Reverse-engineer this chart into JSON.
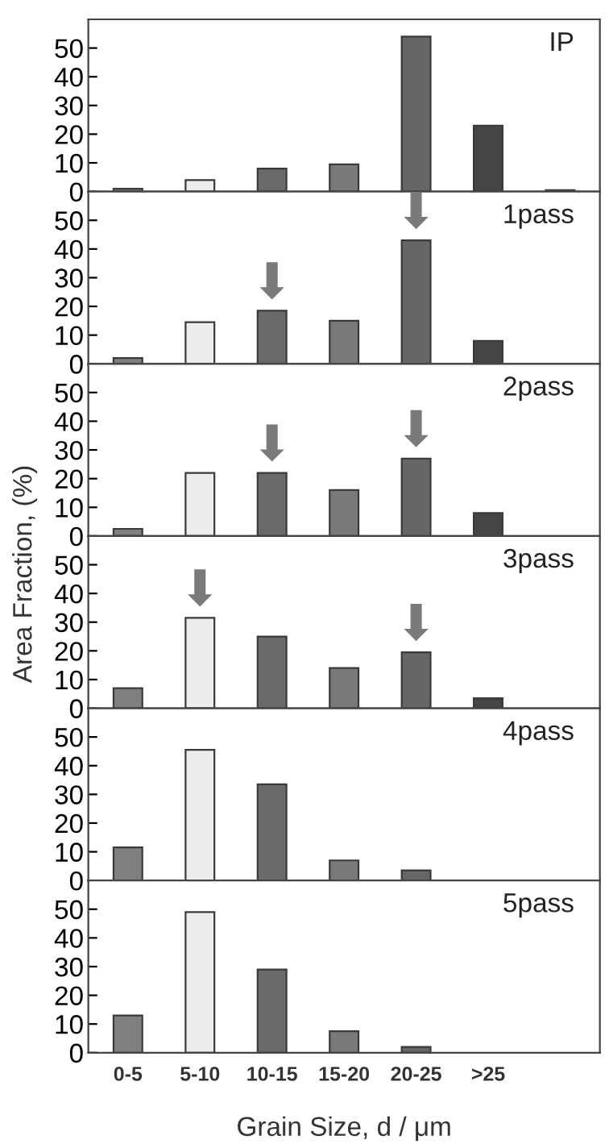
{
  "chart_data": [
    {
      "type": "bar",
      "title": "IP",
      "categories": [
        "0-5",
        "5-10",
        "10-15",
        "15-20",
        "20-25",
        ">25",
        null
      ],
      "values": [
        1,
        4,
        8,
        9.5,
        54,
        23,
        0.5
      ],
      "colors": [
        "#808080",
        "#ececec",
        "#6a6a6a",
        "#7a7a7a",
        "#666666",
        "#454545",
        "#555555"
      ],
      "ylim": [
        0,
        60
      ],
      "yticks": [
        0,
        10,
        20,
        30,
        40,
        50
      ],
      "tick_labels": "y",
      "grid": false,
      "legend": false
    },
    {
      "type": "bar",
      "title": "1pass",
      "categories": [
        "0-5",
        "5-10",
        "10-15",
        "15-20",
        "20-25",
        ">25",
        null
      ],
      "values": [
        2,
        14.5,
        18.5,
        15,
        43,
        8,
        null
      ],
      "colors": [
        "#808080",
        "#ececec",
        "#6a6a6a",
        "#7a7a7a",
        "#666666",
        "#454545",
        "#555555"
      ],
      "ylim": [
        0,
        60
      ],
      "yticks": [
        0,
        10,
        20,
        30,
        40,
        50
      ],
      "tick_labels": "y",
      "grid": false,
      "legend": false,
      "annotations": [
        {
          "text": "⬇",
          "x": "10-15",
          "y": 18.5
        },
        {
          "text": "⬇",
          "x": "20-25",
          "y": 43
        }
      ]
    },
    {
      "type": "bar",
      "title": "2pass",
      "categories": [
        "0-5",
        "5-10",
        "10-15",
        "15-20",
        "20-25",
        ">25",
        null
      ],
      "values": [
        2.5,
        22,
        22,
        16,
        27,
        8,
        null
      ],
      "colors": [
        "#808080",
        "#ececec",
        "#6a6a6a",
        "#7a7a7a",
        "#666666",
        "#454545",
        "#555555"
      ],
      "ylim": [
        0,
        60
      ],
      "yticks": [
        0,
        10,
        20,
        30,
        40,
        50
      ],
      "tick_labels": "y",
      "grid": false,
      "legend": false,
      "annotations": [
        {
          "text": "⬇",
          "x": "10-15",
          "y": 22
        },
        {
          "text": "⬇",
          "x": "20-25",
          "y": 27
        }
      ]
    },
    {
      "type": "bar",
      "title": "3pass",
      "ylabel": "Area Fraction, (%)",
      "categories": [
        "0-5",
        "5-10",
        "10-15",
        "15-20",
        "20-25",
        ">25",
        null
      ],
      "values": [
        7,
        31.5,
        25,
        14,
        19.5,
        3.5,
        null
      ],
      "colors": [
        "#808080",
        "#ececec",
        "#6a6a6a",
        "#7a7a7a",
        "#666666",
        "#454545",
        "#555555"
      ],
      "ylim": [
        0,
        60
      ],
      "yticks": [
        0,
        10,
        20,
        30,
        40,
        50
      ],
      "tick_labels": "y",
      "grid": false,
      "legend": false,
      "annotations": [
        {
          "text": "⬇",
          "x": "5-10",
          "y": 31.5
        },
        {
          "text": "⬇",
          "x": "20-25",
          "y": 19.5
        }
      ]
    },
    {
      "type": "bar",
      "title": "4pass",
      "categories": [
        "0-5",
        "5-10",
        "10-15",
        "15-20",
        "20-25",
        ">25",
        null
      ],
      "values": [
        11.5,
        45.5,
        33.5,
        7,
        3.5,
        null,
        null
      ],
      "colors": [
        "#808080",
        "#ececec",
        "#6a6a6a",
        "#7a7a7a",
        "#666666",
        "#454545",
        "#555555"
      ],
      "ylim": [
        0,
        60
      ],
      "yticks": [
        0,
        10,
        20,
        30,
        40,
        50
      ],
      "tick_labels": "y",
      "grid": false,
      "legend": false
    },
    {
      "type": "bar",
      "title": "5pass",
      "xlabel": "Grain Size, d / μm",
      "categories": [
        "0-5",
        "5-10",
        "10-15",
        "15-20",
        "20-25",
        ">25",
        null
      ],
      "values": [
        13,
        49,
        29,
        7.5,
        2,
        null,
        null
      ],
      "colors": [
        "#808080",
        "#ececec",
        "#6a6a6a",
        "#7a7a7a",
        "#666666",
        "#454545",
        "#555555"
      ],
      "ylim": [
        0,
        60
      ],
      "yticks": [
        0,
        10,
        20,
        30,
        40,
        50
      ],
      "grid": false,
      "legend": false
    }
  ]
}
